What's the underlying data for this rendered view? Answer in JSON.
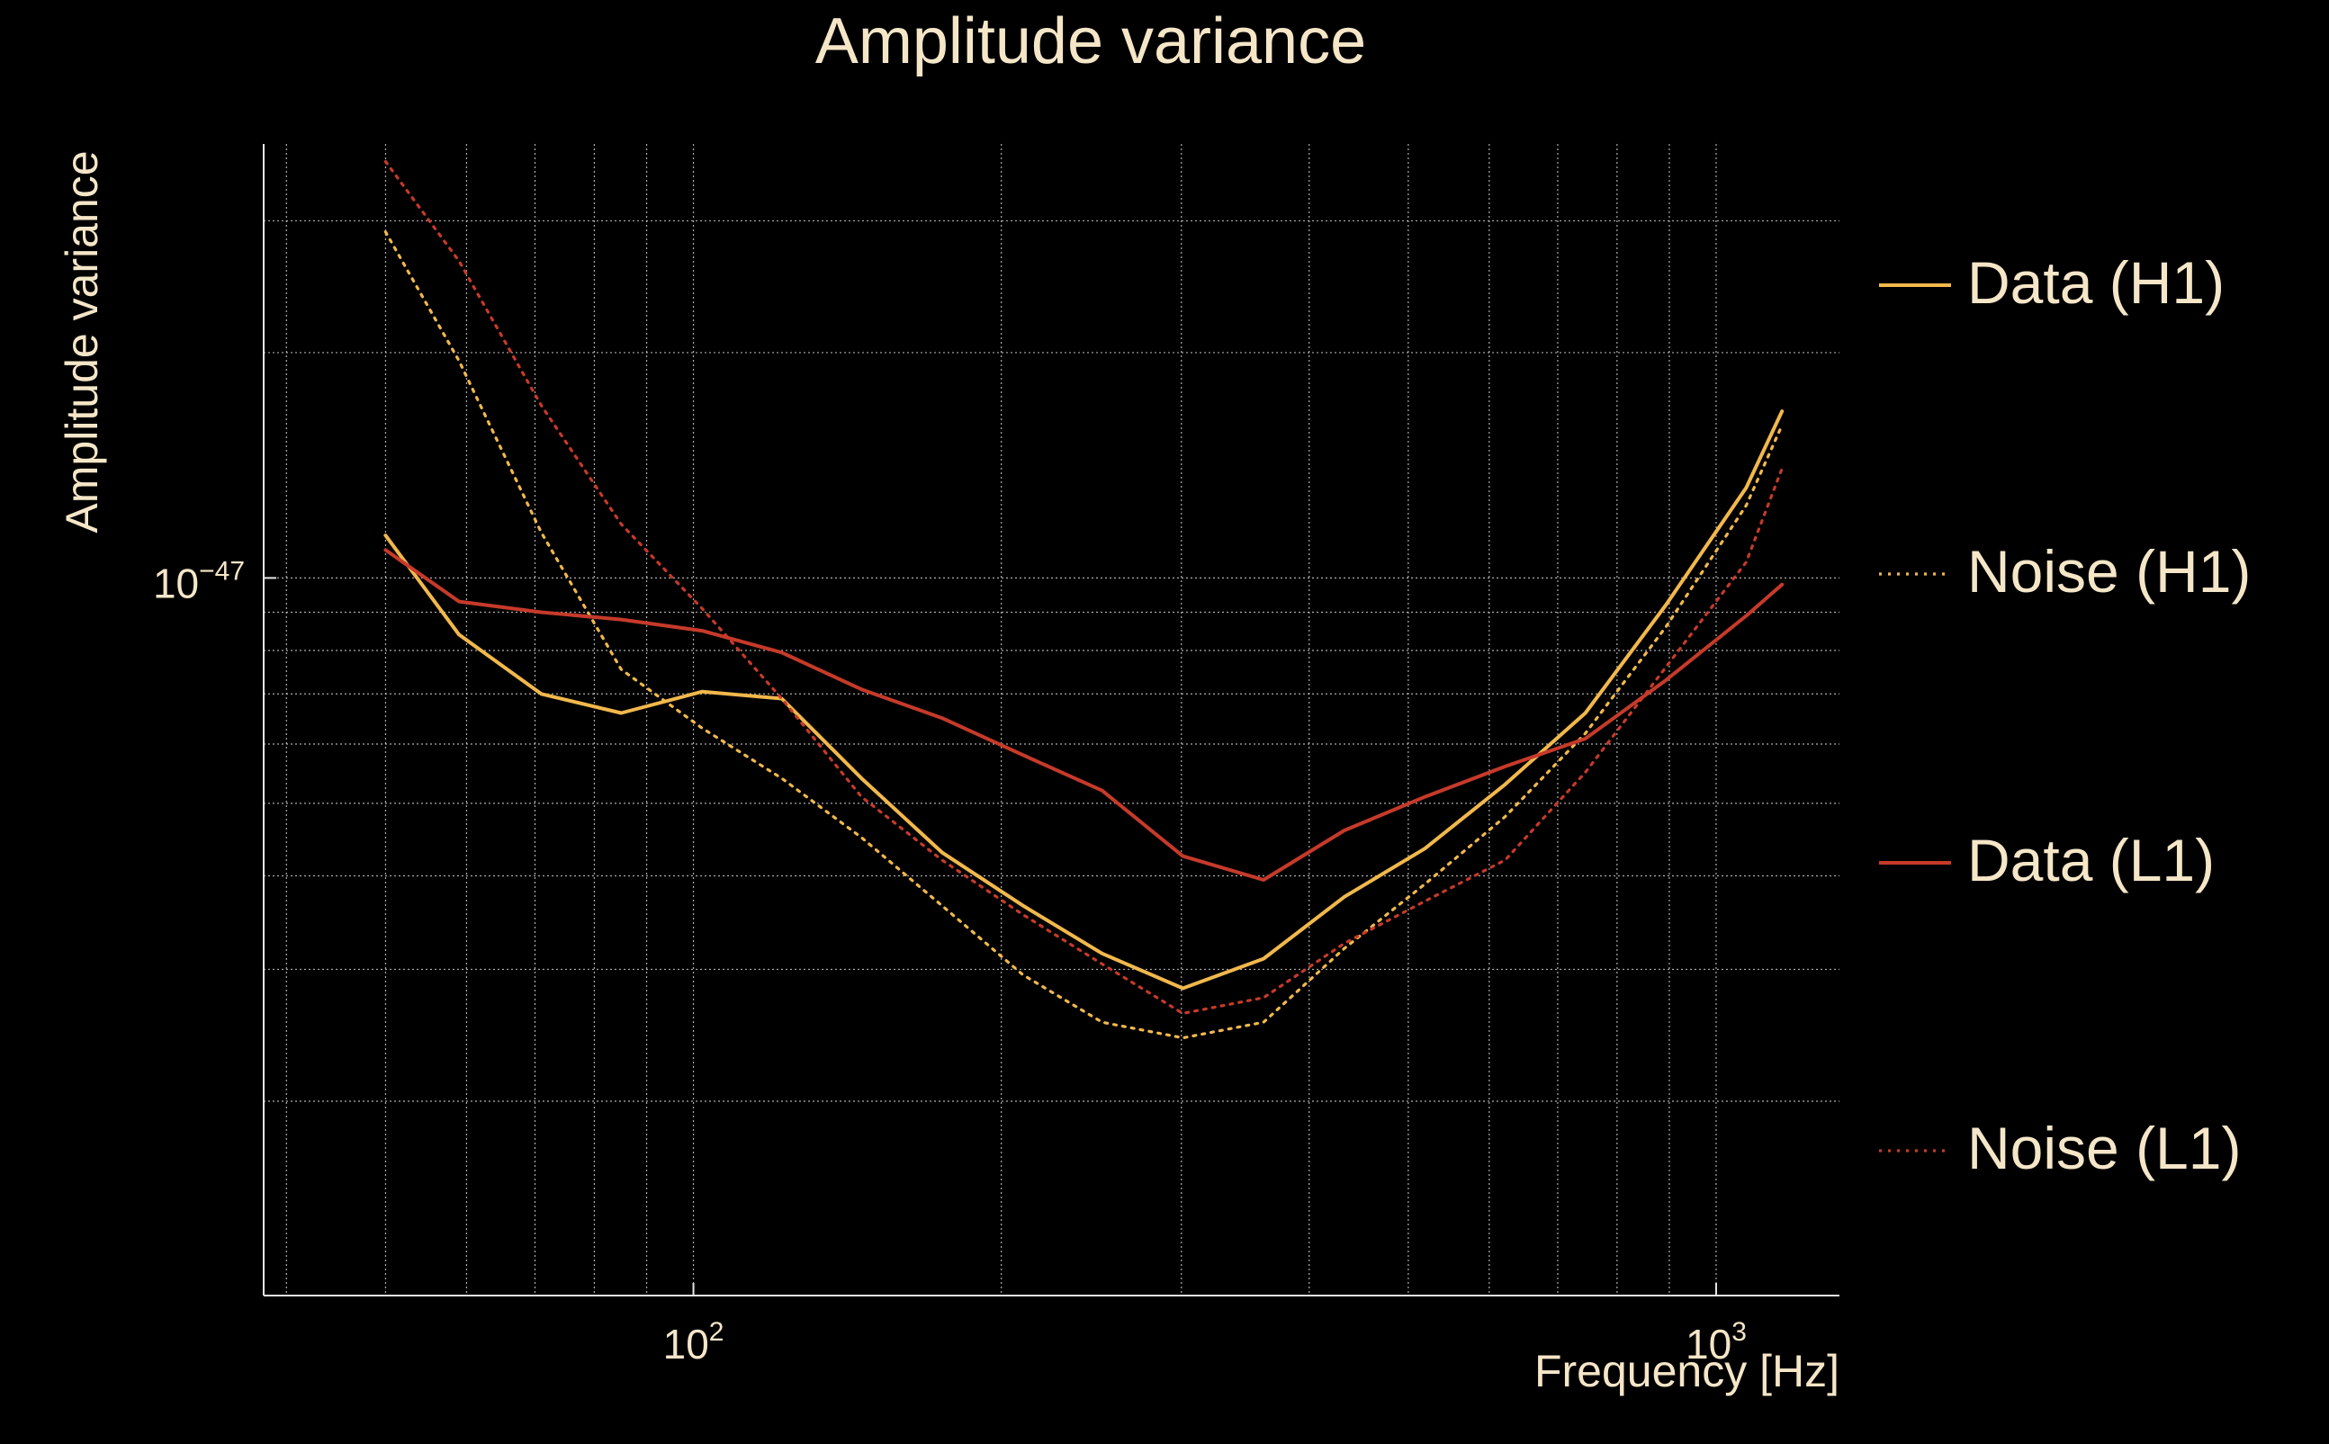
{
  "chart_data": {
    "type": "line",
    "title": "Amplitude variance",
    "xlabel": "Frequency [Hz]",
    "ylabel": "Amplitude variance",
    "xscale": "log",
    "yscale": "log",
    "xlim": [
      38,
      1320
    ],
    "ylim": [
      1.1e-48,
      3.8e-47
    ],
    "grid": true,
    "legend_position": "right",
    "colors": {
      "background": "#000000",
      "text": "#f5e6c8",
      "grid": "#d8d8d8",
      "axis": "#e6e6e6",
      "h1": "#f1b84c",
      "l1": "#c63a2a"
    },
    "x_ticks": [
      {
        "value": 100,
        "base": "10",
        "exp": "2"
      },
      {
        "value": 1000,
        "base": "10",
        "exp": "3"
      }
    ],
    "y_ticks": [
      {
        "value": 1e-47,
        "base": "10",
        "exp": "−47"
      }
    ],
    "series": [
      {
        "name": "Data (H1)",
        "style": "solid",
        "color": "#f1b84c",
        "x": [
          50,
          59,
          71,
          85,
          102,
          122,
          146,
          175,
          210,
          251,
          301,
          361,
          433,
          519,
          622,
          745,
          893,
          1070,
          1160
        ],
        "y": [
          1.14e-47,
          8.4e-48,
          7e-48,
          6.6e-48,
          7.05e-48,
          6.9e-48,
          5.4e-48,
          4.3e-48,
          3.65e-48,
          3.15e-48,
          2.83e-48,
          3.1e-48,
          3.75e-48,
          4.35e-48,
          5.3e-48,
          6.6e-48,
          9.2e-48,
          1.32e-47,
          1.67e-47
        ]
      },
      {
        "name": "Noise (H1)",
        "style": "dotted",
        "color": "#f1b84c",
        "x": [
          50,
          59,
          71,
          85,
          102,
          122,
          146,
          175,
          210,
          251,
          301,
          361,
          433,
          519,
          622,
          745,
          893,
          1070,
          1160
        ],
        "y": [
          2.9e-47,
          1.95e-47,
          1.15e-47,
          7.55e-48,
          6.3e-48,
          5.4e-48,
          4.5e-48,
          3.65e-48,
          2.95e-48,
          2.55e-48,
          2.43e-48,
          2.55e-48,
          3.2e-48,
          3.9e-48,
          4.8e-48,
          6.2e-48,
          8.6e-48,
          1.25e-47,
          1.6e-47
        ]
      },
      {
        "name": "Data (L1)",
        "style": "solid",
        "color": "#c63a2a",
        "x": [
          50,
          59,
          71,
          85,
          102,
          122,
          146,
          175,
          210,
          251,
          301,
          361,
          433,
          519,
          622,
          745,
          893,
          1070,
          1160
        ],
        "y": [
          1.09e-47,
          9.3e-48,
          9e-48,
          8.8e-48,
          8.5e-48,
          7.95e-48,
          7.1e-48,
          6.5e-48,
          5.8e-48,
          5.2e-48,
          4.25e-48,
          3.95e-48,
          4.6e-48,
          5.1e-48,
          5.6e-48,
          6.1e-48,
          7.3e-48,
          8.9e-48,
          9.8e-48
        ]
      },
      {
        "name": "Noise (L1)",
        "style": "dotted",
        "color": "#c63a2a",
        "x": [
          50,
          59,
          71,
          85,
          102,
          122,
          146,
          175,
          210,
          251,
          301,
          361,
          433,
          519,
          622,
          745,
          893,
          1070,
          1160
        ],
        "y": [
          3.6e-47,
          2.65e-47,
          1.7e-47,
          1.18e-47,
          9.1e-48,
          6.9e-48,
          5.1e-48,
          4.2e-48,
          3.55e-48,
          3.05e-48,
          2.62e-48,
          2.75e-48,
          3.25e-48,
          3.7e-48,
          4.2e-48,
          5.5e-48,
          7.6e-48,
          1.05e-47,
          1.4e-47
        ]
      }
    ]
  }
}
